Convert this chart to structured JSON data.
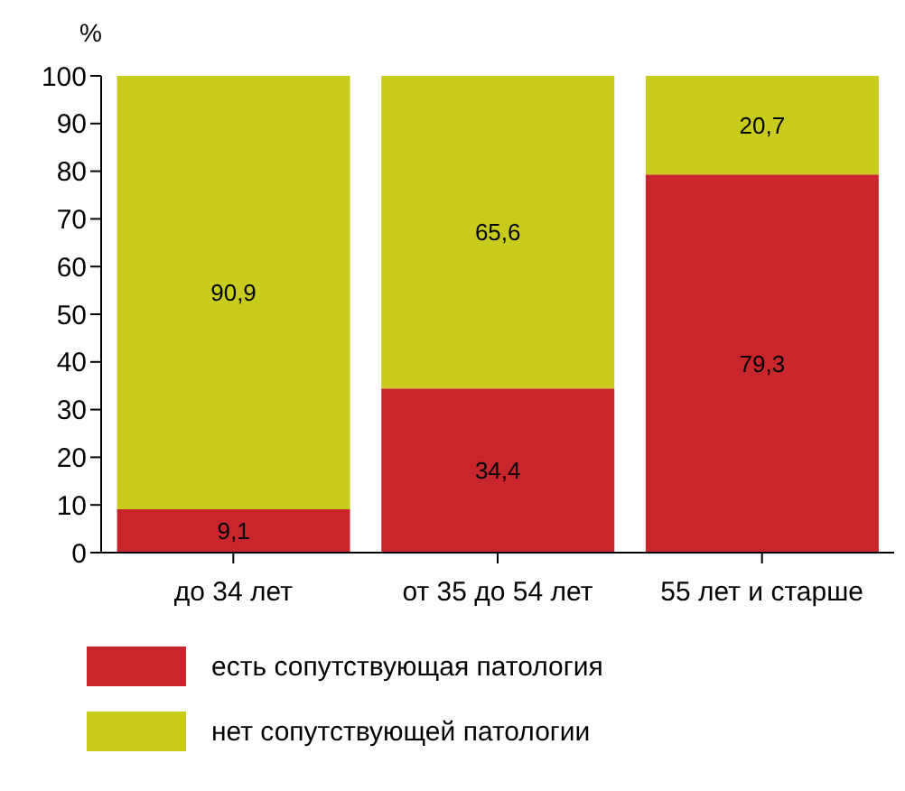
{
  "chart_data": {
    "type": "bar",
    "stacked": true,
    "ylabel": "%",
    "categories": [
      "до 34 лет",
      "от 35 до 54 лет",
      "55 лет и старше"
    ],
    "series": [
      {
        "name": "есть сопутствующая патология",
        "color": "#c8262c",
        "values": [
          9.1,
          34.4,
          79.3
        ],
        "value_labels": [
          "9,1",
          "34,4",
          "79,3"
        ]
      },
      {
        "name": "нет сопутствующей патологии",
        "color": "#c9cc1d",
        "values": [
          90.9,
          65.6,
          20.7
        ],
        "value_labels": [
          "90,9",
          "65,6",
          "20,7"
        ]
      }
    ],
    "ylim": [
      0,
      100
    ],
    "yticks": [
      0,
      10,
      20,
      30,
      40,
      50,
      60,
      70,
      80,
      90,
      100
    ],
    "legend": "bottom"
  }
}
